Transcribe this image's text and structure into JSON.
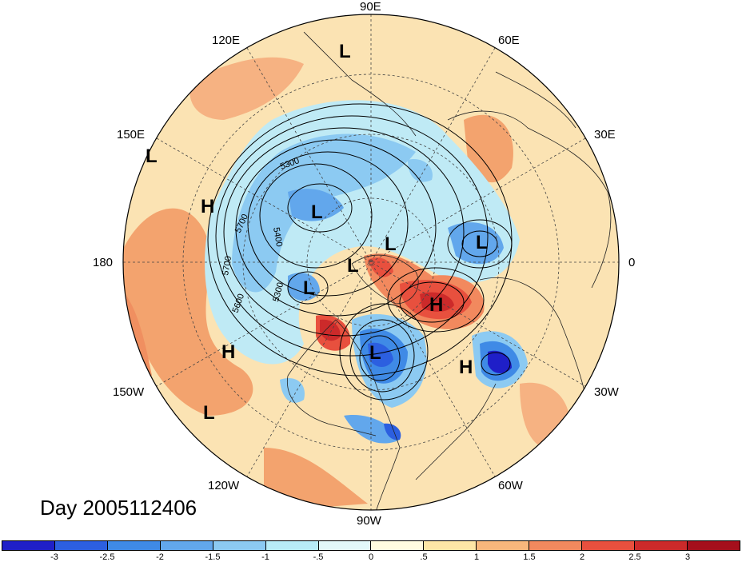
{
  "title": "Day 2005112406",
  "longitude_labels": [
    "90E",
    "120E",
    "60E",
    "150E",
    "30E",
    "180",
    "0",
    "150W",
    "30W",
    "120W",
    "60W",
    "90W"
  ],
  "pressure_centers": [
    "L",
    "L",
    "H",
    "L",
    "L",
    "L",
    "L",
    "L",
    "H",
    "H",
    "H",
    "L"
  ],
  "contour_labels": [
    "5300",
    "5400",
    "5700",
    "5700",
    "5600",
    "5300"
  ],
  "colorbar": {
    "ticks": [
      "-3",
      "-2.5",
      "-2",
      "-1.5",
      "-1",
      "-.5",
      "0",
      ".5",
      "1",
      "1.5",
      "2",
      "2.5",
      "3"
    ],
    "colors": [
      "#1f1fc8",
      "#2c5fe0",
      "#3f8ae6",
      "#62a7ec",
      "#8ccaf2",
      "#b8ecf7",
      "#e3f8fa",
      "#fffbe0",
      "#fde6a6",
      "#f8b77c",
      "#f2895e",
      "#e8503e",
      "#cc2a2a",
      "#a50f1c"
    ]
  },
  "colors": {
    "contour": "#000000",
    "map_lines": "#222222",
    "grid": "#444444",
    "background_warm": "#fbe3b3"
  }
}
